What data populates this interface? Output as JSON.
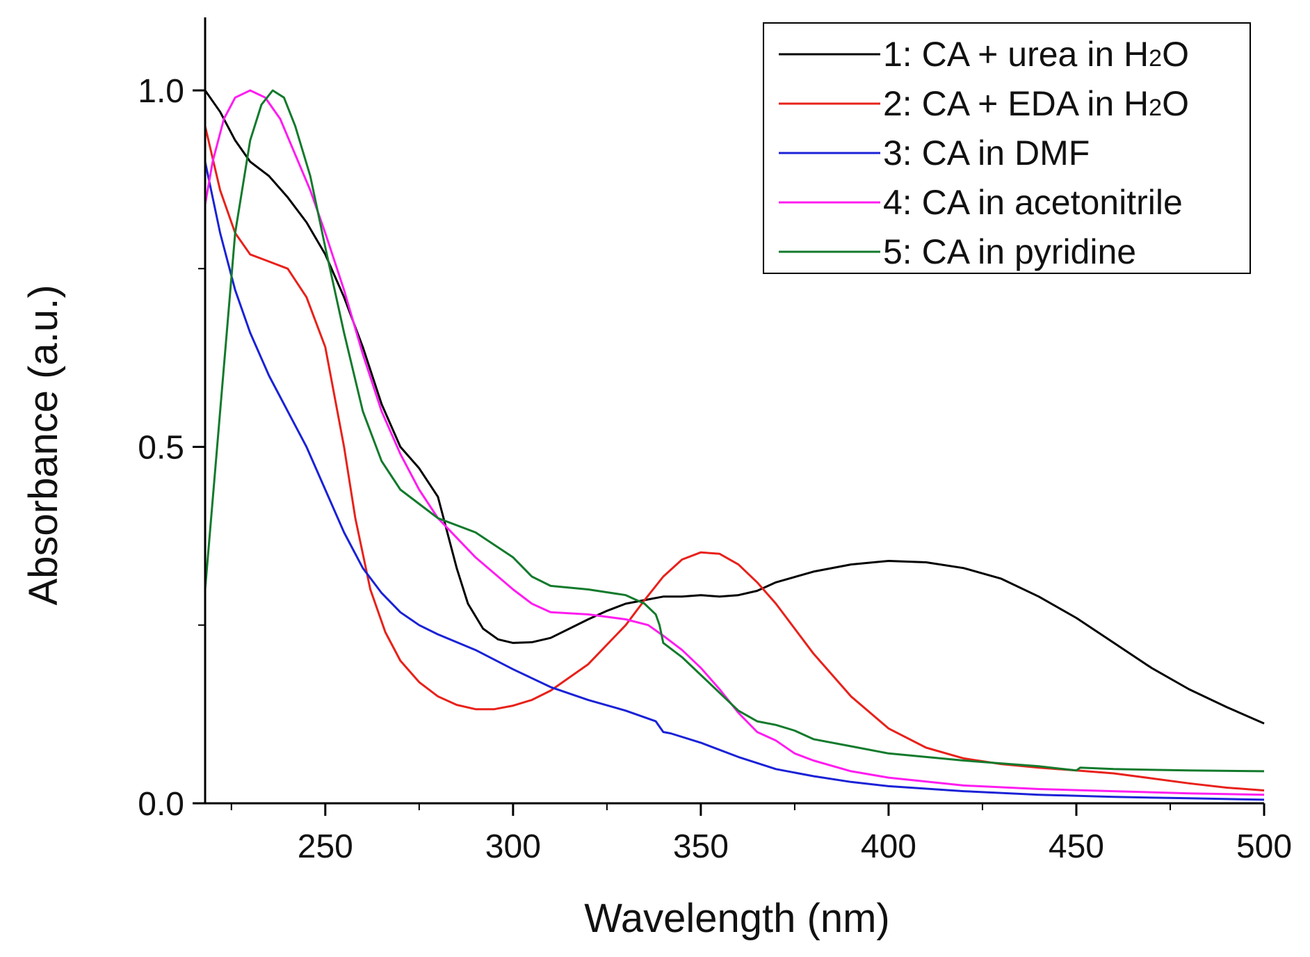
{
  "chart_data": {
    "type": "line",
    "title": "",
    "xlabel": "Wavelength (nm)",
    "ylabel": "Absorbance (a.u.)",
    "xlim": [
      218,
      500
    ],
    "ylim": [
      0.0,
      1.1
    ],
    "x_major_ticks": [
      250,
      300,
      350,
      400,
      450,
      500
    ],
    "x_minor_ticks": [
      225,
      275,
      325,
      375,
      425,
      475
    ],
    "x_tick_labels": [
      "250",
      "300",
      "350",
      "400",
      "450",
      "500"
    ],
    "y_major_ticks": [
      0.0,
      0.5,
      1.0
    ],
    "y_minor_ticks": [
      0.25,
      0.75
    ],
    "y_tick_labels": [
      "0.0",
      "0.5",
      "1.0"
    ],
    "grid": false,
    "legend_position": "top-right",
    "series": [
      {
        "name": "1: CA + urea in H2O",
        "label_prefix": "1: CA + urea in H",
        "label_sub": "2",
        "label_suffix": "O",
        "color": "#000000",
        "x": [
          218,
          222,
          226,
          230,
          235,
          240,
          245,
          250,
          255,
          260,
          265,
          270,
          275,
          280,
          285,
          288,
          292,
          296,
          300,
          305,
          310,
          315,
          320,
          325,
          330,
          335,
          338,
          340,
          345,
          350,
          355,
          360,
          365,
          370,
          380,
          390,
          400,
          410,
          420,
          430,
          440,
          450,
          460,
          470,
          480,
          490,
          500
        ],
        "y": [
          1.0,
          0.97,
          0.93,
          0.9,
          0.88,
          0.85,
          0.815,
          0.77,
          0.71,
          0.64,
          0.56,
          0.5,
          0.47,
          0.43,
          0.33,
          0.28,
          0.245,
          0.23,
          0.225,
          0.226,
          0.232,
          0.245,
          0.258,
          0.27,
          0.28,
          0.285,
          0.288,
          0.29,
          0.29,
          0.292,
          0.29,
          0.292,
          0.298,
          0.31,
          0.325,
          0.335,
          0.34,
          0.338,
          0.33,
          0.315,
          0.29,
          0.26,
          0.225,
          0.19,
          0.16,
          0.135,
          0.112
        ]
      },
      {
        "name": "2: CA + EDA in H2O",
        "label_prefix": "2: CA + EDA in H",
        "label_sub": "2",
        "label_suffix": "O",
        "color": "#e8211a",
        "x": [
          218,
          222,
          226,
          230,
          235,
          240,
          245,
          250,
          255,
          258,
          262,
          266,
          270,
          275,
          280,
          285,
          290,
          295,
          300,
          305,
          310,
          320,
          330,
          335,
          340,
          345,
          350,
          355,
          360,
          365,
          370,
          375,
          380,
          390,
          400,
          410,
          420,
          430,
          440,
          450,
          460,
          470,
          480,
          490,
          500
        ],
        "y": [
          0.95,
          0.86,
          0.8,
          0.77,
          0.76,
          0.75,
          0.71,
          0.64,
          0.5,
          0.4,
          0.3,
          0.24,
          0.2,
          0.17,
          0.15,
          0.138,
          0.132,
          0.132,
          0.137,
          0.145,
          0.158,
          0.195,
          0.25,
          0.285,
          0.318,
          0.342,
          0.352,
          0.35,
          0.335,
          0.31,
          0.28,
          0.245,
          0.21,
          0.15,
          0.105,
          0.078,
          0.063,
          0.055,
          0.05,
          0.046,
          0.042,
          0.035,
          0.028,
          0.022,
          0.018
        ]
      },
      {
        "name": "3: CA in DMF",
        "label_prefix": "3: CA in DMF",
        "label_sub": "",
        "label_suffix": "",
        "color": "#1a22d6",
        "x": [
          218,
          222,
          226,
          230,
          235,
          240,
          245,
          250,
          255,
          260,
          265,
          270,
          275,
          280,
          290,
          300,
          310,
          320,
          330,
          338,
          340,
          342,
          350,
          360,
          370,
          380,
          390,
          400,
          420,
          440,
          460,
          480,
          500
        ],
        "y": [
          0.9,
          0.8,
          0.72,
          0.66,
          0.6,
          0.55,
          0.5,
          0.44,
          0.38,
          0.33,
          0.295,
          0.268,
          0.25,
          0.237,
          0.215,
          0.188,
          0.163,
          0.145,
          0.13,
          0.115,
          0.1,
          0.098,
          0.085,
          0.065,
          0.048,
          0.038,
          0.03,
          0.024,
          0.017,
          0.012,
          0.009,
          0.007,
          0.005
        ]
      },
      {
        "name": "4: CA in acetonitrile",
        "label_prefix": "4: CA in acetonitrile",
        "label_sub": "",
        "label_suffix": "",
        "color": "#ff1cf0",
        "x": [
          218,
          220,
          223,
          226,
          230,
          234,
          238,
          242,
          246,
          250,
          255,
          260,
          265,
          270,
          275,
          280,
          290,
          300,
          305,
          310,
          320,
          330,
          336,
          340,
          345,
          350,
          355,
          360,
          365,
          370,
          375,
          380,
          390,
          400,
          420,
          440,
          460,
          480,
          500
        ],
        "y": [
          0.84,
          0.9,
          0.96,
          0.99,
          1.0,
          0.99,
          0.96,
          0.91,
          0.86,
          0.8,
          0.72,
          0.63,
          0.55,
          0.49,
          0.44,
          0.4,
          0.345,
          0.3,
          0.28,
          0.268,
          0.265,
          0.258,
          0.25,
          0.235,
          0.215,
          0.19,
          0.16,
          0.127,
          0.1,
          0.088,
          0.07,
          0.06,
          0.045,
          0.036,
          0.025,
          0.02,
          0.017,
          0.014,
          0.012
        ]
      },
      {
        "name": "5: CA in pyridine",
        "label_prefix": "5: CA in pyridine",
        "label_sub": "",
        "label_suffix": "",
        "color": "#127a2c",
        "x": [
          218,
          222,
          226,
          230,
          233,
          236,
          239,
          242,
          246,
          250,
          255,
          260,
          265,
          270,
          275,
          280,
          290,
          300,
          305,
          310,
          320,
          330,
          335,
          338,
          339,
          340,
          345,
          350,
          355,
          360,
          365,
          370,
          375,
          380,
          390,
          400,
          420,
          440,
          450,
          451,
          460,
          480,
          500
        ],
        "y": [
          0.3,
          0.55,
          0.8,
          0.93,
          0.98,
          1.0,
          0.99,
          0.95,
          0.88,
          0.78,
          0.66,
          0.55,
          0.48,
          0.44,
          0.42,
          0.4,
          0.38,
          0.345,
          0.318,
          0.305,
          0.3,
          0.292,
          0.28,
          0.265,
          0.25,
          0.225,
          0.205,
          0.18,
          0.155,
          0.13,
          0.115,
          0.11,
          0.102,
          0.09,
          0.08,
          0.07,
          0.06,
          0.052,
          0.046,
          0.05,
          0.048,
          0.046,
          0.045
        ]
      }
    ]
  }
}
